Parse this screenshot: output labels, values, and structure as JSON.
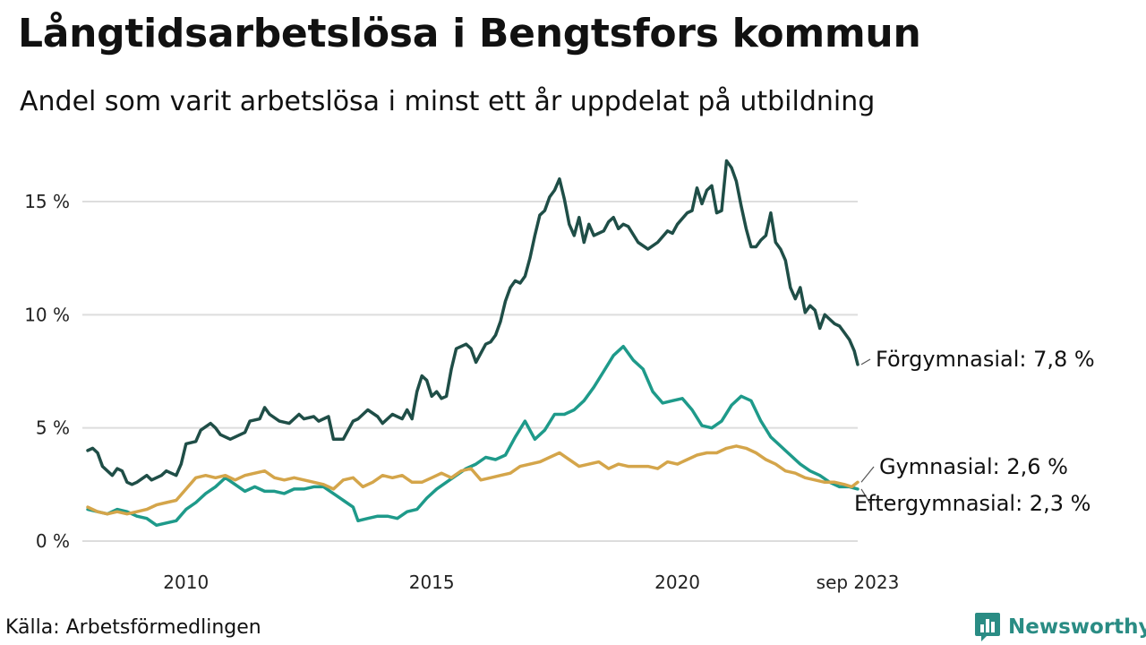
{
  "title": "Långtidsarbetslösa i Bengtsfors kommun",
  "subtitle": "Andel som varit arbetslösa i minst ett år uppdelat på utbildning",
  "source": "Källa: Arbetsförmedlingen",
  "brand": {
    "name": "Newsworthy",
    "icon": "bar-chart-speech-bubble-icon",
    "color": "#2a8c84"
  },
  "chart_data": {
    "type": "line",
    "x_range": [
      2008.0,
      2023.67
    ],
    "ylim": [
      0,
      17
    ],
    "grid": true,
    "y_ticks": [
      {
        "value": 0,
        "label": "0 %"
      },
      {
        "value": 5,
        "label": "5 %"
      },
      {
        "value": 10,
        "label": "10 %"
      },
      {
        "value": 15,
        "label": "15 %"
      }
    ],
    "x_ticks": [
      {
        "value": 2010,
        "label": "2010"
      },
      {
        "value": 2015,
        "label": "2015"
      },
      {
        "value": 2020,
        "label": "2020"
      },
      {
        "value": 2023.67,
        "label": "sep 2023"
      }
    ],
    "series": [
      {
        "name": "Förgymnasial",
        "end_label": "Förgymnasial: 7,8 %",
        "color": "#1f4e47",
        "points": [
          [
            2008.0,
            4.0
          ],
          [
            2008.1,
            4.1
          ],
          [
            2008.2,
            3.9
          ],
          [
            2008.3,
            3.3
          ],
          [
            2008.5,
            2.9
          ],
          [
            2008.6,
            3.2
          ],
          [
            2008.7,
            3.1
          ],
          [
            2008.8,
            2.6
          ],
          [
            2008.9,
            2.5
          ],
          [
            2009.0,
            2.6
          ],
          [
            2009.2,
            2.9
          ],
          [
            2009.3,
            2.7
          ],
          [
            2009.5,
            2.9
          ],
          [
            2009.6,
            3.1
          ],
          [
            2009.8,
            2.9
          ],
          [
            2009.9,
            3.4
          ],
          [
            2010.0,
            4.3
          ],
          [
            2010.2,
            4.4
          ],
          [
            2010.3,
            4.9
          ],
          [
            2010.5,
            5.2
          ],
          [
            2010.6,
            5.0
          ],
          [
            2010.7,
            4.7
          ],
          [
            2010.9,
            4.5
          ],
          [
            2011.0,
            4.6
          ],
          [
            2011.2,
            4.8
          ],
          [
            2011.3,
            5.3
          ],
          [
            2011.5,
            5.4
          ],
          [
            2011.6,
            5.9
          ],
          [
            2011.7,
            5.6
          ],
          [
            2011.9,
            5.3
          ],
          [
            2012.1,
            5.2
          ],
          [
            2012.3,
            5.6
          ],
          [
            2012.4,
            5.4
          ],
          [
            2012.6,
            5.5
          ],
          [
            2012.7,
            5.3
          ],
          [
            2012.9,
            5.5
          ],
          [
            2013.0,
            4.5
          ],
          [
            2013.2,
            4.5
          ],
          [
            2013.4,
            5.3
          ],
          [
            2013.5,
            5.4
          ],
          [
            2013.7,
            5.8
          ],
          [
            2013.9,
            5.5
          ],
          [
            2014.0,
            5.2
          ],
          [
            2014.2,
            5.6
          ],
          [
            2014.4,
            5.4
          ],
          [
            2014.5,
            5.8
          ],
          [
            2014.6,
            5.4
          ],
          [
            2014.7,
            6.6
          ],
          [
            2014.8,
            7.3
          ],
          [
            2014.9,
            7.1
          ],
          [
            2015.0,
            6.4
          ],
          [
            2015.1,
            6.6
          ],
          [
            2015.2,
            6.3
          ],
          [
            2015.3,
            6.4
          ],
          [
            2015.4,
            7.6
          ],
          [
            2015.5,
            8.5
          ],
          [
            2015.7,
            8.7
          ],
          [
            2015.8,
            8.5
          ],
          [
            2015.9,
            7.9
          ],
          [
            2016.1,
            8.7
          ],
          [
            2016.2,
            8.8
          ],
          [
            2016.3,
            9.1
          ],
          [
            2016.4,
            9.7
          ],
          [
            2016.5,
            10.6
          ],
          [
            2016.6,
            11.2
          ],
          [
            2016.7,
            11.5
          ],
          [
            2016.8,
            11.4
          ],
          [
            2016.9,
            11.7
          ],
          [
            2017.0,
            12.5
          ],
          [
            2017.1,
            13.5
          ],
          [
            2017.2,
            14.4
          ],
          [
            2017.3,
            14.6
          ],
          [
            2017.4,
            15.2
          ],
          [
            2017.5,
            15.5
          ],
          [
            2017.6,
            16.0
          ],
          [
            2017.7,
            15.1
          ],
          [
            2017.8,
            14.0
          ],
          [
            2017.9,
            13.5
          ],
          [
            2018.0,
            14.3
          ],
          [
            2018.1,
            13.2
          ],
          [
            2018.2,
            14.0
          ],
          [
            2018.3,
            13.5
          ],
          [
            2018.5,
            13.7
          ],
          [
            2018.6,
            14.1
          ],
          [
            2018.7,
            14.3
          ],
          [
            2018.8,
            13.8
          ],
          [
            2018.9,
            14.0
          ],
          [
            2019.0,
            13.9
          ],
          [
            2019.2,
            13.2
          ],
          [
            2019.4,
            12.9
          ],
          [
            2019.6,
            13.2
          ],
          [
            2019.8,
            13.7
          ],
          [
            2019.9,
            13.6
          ],
          [
            2020.0,
            14.0
          ],
          [
            2020.2,
            14.5
          ],
          [
            2020.3,
            14.6
          ],
          [
            2020.4,
            15.6
          ],
          [
            2020.5,
            14.9
          ],
          [
            2020.6,
            15.5
          ],
          [
            2020.7,
            15.7
          ],
          [
            2020.8,
            14.5
          ],
          [
            2020.9,
            14.6
          ],
          [
            2021.0,
            16.8
          ],
          [
            2021.1,
            16.5
          ],
          [
            2021.2,
            15.9
          ],
          [
            2021.3,
            14.8
          ],
          [
            2021.4,
            13.8
          ],
          [
            2021.5,
            13.0
          ],
          [
            2021.6,
            13.0
          ],
          [
            2021.7,
            13.3
          ],
          [
            2021.8,
            13.5
          ],
          [
            2021.9,
            14.5
          ],
          [
            2022.0,
            13.2
          ],
          [
            2022.1,
            12.9
          ],
          [
            2022.2,
            12.4
          ],
          [
            2022.3,
            11.2
          ],
          [
            2022.4,
            10.7
          ],
          [
            2022.5,
            11.2
          ],
          [
            2022.6,
            10.1
          ],
          [
            2022.7,
            10.4
          ],
          [
            2022.8,
            10.2
          ],
          [
            2022.9,
            9.4
          ],
          [
            2023.0,
            10.0
          ],
          [
            2023.1,
            9.8
          ],
          [
            2023.2,
            9.6
          ],
          [
            2023.3,
            9.5
          ],
          [
            2023.4,
            9.2
          ],
          [
            2023.5,
            8.9
          ],
          [
            2023.6,
            8.4
          ],
          [
            2023.67,
            7.8
          ]
        ]
      },
      {
        "name": "Eftergymnasial",
        "end_label": "Eftergymnasial: 2,3 %",
        "color": "#1e9a8a",
        "points": [
          [
            2008.0,
            1.4
          ],
          [
            2008.2,
            1.3
          ],
          [
            2008.4,
            1.2
          ],
          [
            2008.6,
            1.4
          ],
          [
            2008.8,
            1.3
          ],
          [
            2009.0,
            1.1
          ],
          [
            2009.2,
            1.0
          ],
          [
            2009.4,
            0.7
          ],
          [
            2009.6,
            0.8
          ],
          [
            2009.8,
            0.9
          ],
          [
            2010.0,
            1.4
          ],
          [
            2010.2,
            1.7
          ],
          [
            2010.4,
            2.1
          ],
          [
            2010.6,
            2.4
          ],
          [
            2010.8,
            2.8
          ],
          [
            2011.0,
            2.5
          ],
          [
            2011.2,
            2.2
          ],
          [
            2011.4,
            2.4
          ],
          [
            2011.6,
            2.2
          ],
          [
            2011.8,
            2.2
          ],
          [
            2012.0,
            2.1
          ],
          [
            2012.2,
            2.3
          ],
          [
            2012.4,
            2.3
          ],
          [
            2012.6,
            2.4
          ],
          [
            2012.8,
            2.4
          ],
          [
            2013.0,
            2.1
          ],
          [
            2013.2,
            1.8
          ],
          [
            2013.4,
            1.5
          ],
          [
            2013.5,
            0.9
          ],
          [
            2013.7,
            1.0
          ],
          [
            2013.9,
            1.1
          ],
          [
            2014.1,
            1.1
          ],
          [
            2014.3,
            1.0
          ],
          [
            2014.5,
            1.3
          ],
          [
            2014.7,
            1.4
          ],
          [
            2014.9,
            1.9
          ],
          [
            2015.1,
            2.3
          ],
          [
            2015.3,
            2.6
          ],
          [
            2015.5,
            2.9
          ],
          [
            2015.7,
            3.2
          ],
          [
            2015.9,
            3.4
          ],
          [
            2016.1,
            3.7
          ],
          [
            2016.3,
            3.6
          ],
          [
            2016.5,
            3.8
          ],
          [
            2016.7,
            4.6
          ],
          [
            2016.9,
            5.3
          ],
          [
            2017.1,
            4.5
          ],
          [
            2017.3,
            4.9
          ],
          [
            2017.5,
            5.6
          ],
          [
            2017.7,
            5.6
          ],
          [
            2017.9,
            5.8
          ],
          [
            2018.1,
            6.2
          ],
          [
            2018.3,
            6.8
          ],
          [
            2018.5,
            7.5
          ],
          [
            2018.7,
            8.2
          ],
          [
            2018.9,
            8.6
          ],
          [
            2019.1,
            8.0
          ],
          [
            2019.3,
            7.6
          ],
          [
            2019.5,
            6.6
          ],
          [
            2019.7,
            6.1
          ],
          [
            2019.9,
            6.2
          ],
          [
            2020.1,
            6.3
          ],
          [
            2020.3,
            5.8
          ],
          [
            2020.5,
            5.1
          ],
          [
            2020.7,
            5.0
          ],
          [
            2020.9,
            5.3
          ],
          [
            2021.1,
            6.0
          ],
          [
            2021.3,
            6.4
          ],
          [
            2021.5,
            6.2
          ],
          [
            2021.7,
            5.3
          ],
          [
            2021.9,
            4.6
          ],
          [
            2022.1,
            4.2
          ],
          [
            2022.3,
            3.8
          ],
          [
            2022.5,
            3.4
          ],
          [
            2022.7,
            3.1
          ],
          [
            2022.9,
            2.9
          ],
          [
            2023.1,
            2.6
          ],
          [
            2023.3,
            2.4
          ],
          [
            2023.5,
            2.4
          ],
          [
            2023.67,
            2.3
          ]
        ]
      },
      {
        "name": "Gymnasial",
        "end_label": "Gymnasial: 2,6 %",
        "color": "#d4a54a",
        "points": [
          [
            2008.0,
            1.5
          ],
          [
            2008.2,
            1.3
          ],
          [
            2008.4,
            1.2
          ],
          [
            2008.6,
            1.3
          ],
          [
            2008.8,
            1.2
          ],
          [
            2009.0,
            1.3
          ],
          [
            2009.2,
            1.4
          ],
          [
            2009.4,
            1.6
          ],
          [
            2009.6,
            1.7
          ],
          [
            2009.8,
            1.8
          ],
          [
            2010.0,
            2.3
          ],
          [
            2010.2,
            2.8
          ],
          [
            2010.4,
            2.9
          ],
          [
            2010.6,
            2.8
          ],
          [
            2010.8,
            2.9
          ],
          [
            2011.0,
            2.7
          ],
          [
            2011.2,
            2.9
          ],
          [
            2011.4,
            3.0
          ],
          [
            2011.6,
            3.1
          ],
          [
            2011.8,
            2.8
          ],
          [
            2012.0,
            2.7
          ],
          [
            2012.2,
            2.8
          ],
          [
            2012.4,
            2.7
          ],
          [
            2012.6,
            2.6
          ],
          [
            2012.8,
            2.5
          ],
          [
            2013.0,
            2.3
          ],
          [
            2013.2,
            2.7
          ],
          [
            2013.4,
            2.8
          ],
          [
            2013.6,
            2.4
          ],
          [
            2013.8,
            2.6
          ],
          [
            2014.0,
            2.9
          ],
          [
            2014.2,
            2.8
          ],
          [
            2014.4,
            2.9
          ],
          [
            2014.6,
            2.6
          ],
          [
            2014.8,
            2.6
          ],
          [
            2015.0,
            2.8
          ],
          [
            2015.2,
            3.0
          ],
          [
            2015.4,
            2.8
          ],
          [
            2015.6,
            3.1
          ],
          [
            2015.8,
            3.2
          ],
          [
            2016.0,
            2.7
          ],
          [
            2016.2,
            2.8
          ],
          [
            2016.4,
            2.9
          ],
          [
            2016.6,
            3.0
          ],
          [
            2016.8,
            3.3
          ],
          [
            2017.0,
            3.4
          ],
          [
            2017.2,
            3.5
          ],
          [
            2017.4,
            3.7
          ],
          [
            2017.6,
            3.9
          ],
          [
            2017.8,
            3.6
          ],
          [
            2018.0,
            3.3
          ],
          [
            2018.2,
            3.4
          ],
          [
            2018.4,
            3.5
          ],
          [
            2018.6,
            3.2
          ],
          [
            2018.8,
            3.4
          ],
          [
            2019.0,
            3.3
          ],
          [
            2019.2,
            3.3
          ],
          [
            2019.4,
            3.3
          ],
          [
            2019.6,
            3.2
          ],
          [
            2019.8,
            3.5
          ],
          [
            2020.0,
            3.4
          ],
          [
            2020.2,
            3.6
          ],
          [
            2020.4,
            3.8
          ],
          [
            2020.6,
            3.9
          ],
          [
            2020.8,
            3.9
          ],
          [
            2021.0,
            4.1
          ],
          [
            2021.2,
            4.2
          ],
          [
            2021.4,
            4.1
          ],
          [
            2021.6,
            3.9
          ],
          [
            2021.8,
            3.6
          ],
          [
            2022.0,
            3.4
          ],
          [
            2022.2,
            3.1
          ],
          [
            2022.4,
            3.0
          ],
          [
            2022.6,
            2.8
          ],
          [
            2022.8,
            2.7
          ],
          [
            2023.0,
            2.6
          ],
          [
            2023.2,
            2.6
          ],
          [
            2023.4,
            2.5
          ],
          [
            2023.55,
            2.4
          ],
          [
            2023.67,
            2.6
          ]
        ]
      }
    ]
  }
}
